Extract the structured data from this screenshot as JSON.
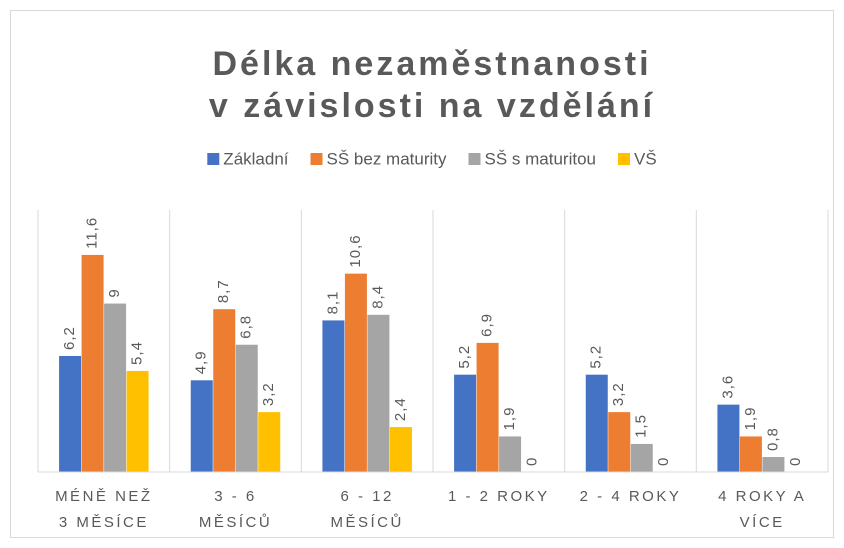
{
  "chart_data": {
    "type": "bar",
    "title": [
      "Délka nezaměstnanosti",
      "v závislosti na vzdělání"
    ],
    "categories": [
      [
        "MÉNĚ NEŽ",
        "3 MĚSÍCE"
      ],
      [
        "3 - 6",
        "MĚSÍCŮ"
      ],
      [
        "6 - 12",
        "MĚSÍCŮ"
      ],
      [
        "1 - 2 ROKY"
      ],
      [
        "2 - 4 ROKY"
      ],
      [
        "4 ROKY A",
        "VÍCE"
      ]
    ],
    "series": [
      {
        "name": "Základní",
        "color": "#4472c4",
        "values": [
          6.2,
          4.9,
          8.1,
          5.2,
          5.2,
          3.6
        ],
        "value_labels": [
          "6,2",
          "4,9",
          "8,1",
          "5,2",
          "5,2",
          "3,6"
        ]
      },
      {
        "name": "SŠ bez maturity",
        "color": "#ed7d31",
        "values": [
          11.6,
          8.7,
          10.6,
          6.9,
          3.2,
          1.9
        ],
        "value_labels": [
          "11,6",
          "8,7",
          "10,6",
          "6,9",
          "3,2",
          "1,9"
        ]
      },
      {
        "name": "SŠ s maturitou",
        "color": "#a5a5a5",
        "values": [
          9,
          6.8,
          8.4,
          1.9,
          1.5,
          0.8
        ],
        "value_labels": [
          "9",
          "6,8",
          "8,4",
          "1,9",
          "1,5",
          "0,8"
        ]
      },
      {
        "name": "VŠ",
        "color": "#ffc000",
        "values": [
          5.4,
          3.2,
          2.4,
          0,
          0,
          0
        ],
        "value_labels": [
          "5,4",
          "3,2",
          "2,4",
          "0",
          "0",
          "0"
        ]
      }
    ],
    "ylim": [
      0,
      14
    ],
    "legend": "top"
  }
}
